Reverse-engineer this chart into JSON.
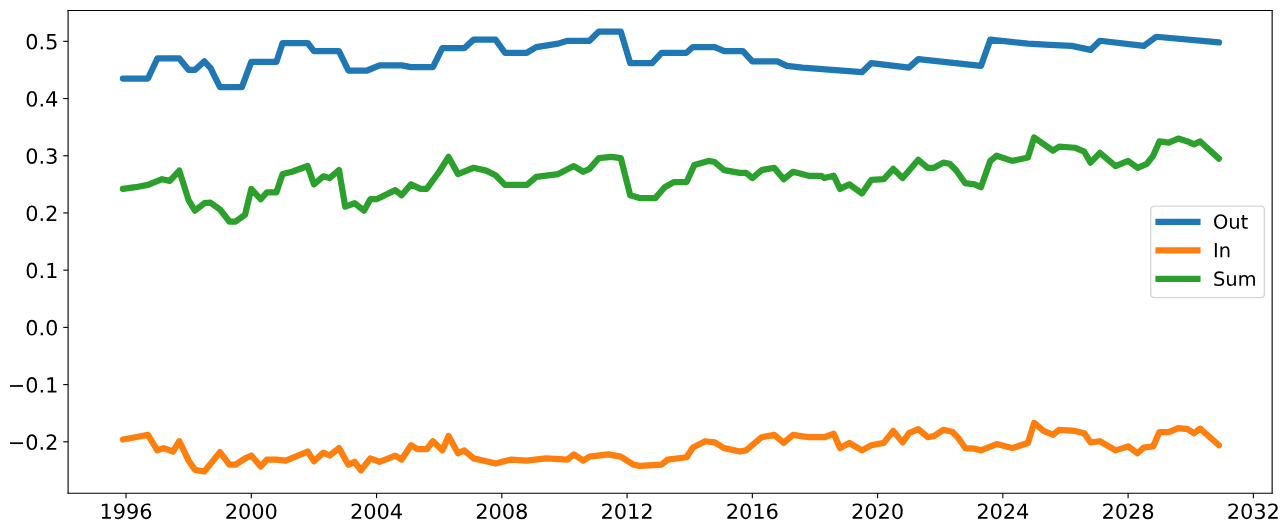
{
  "chart_data": {
    "type": "line",
    "xlim": [
      1994.15,
      2032.6
    ],
    "xticks": [
      1996,
      2000,
      2004,
      2008,
      2012,
      2016,
      2020,
      2024,
      2028,
      2032
    ],
    "ylim": [
      -0.29,
      0.554
    ],
    "yticks": [
      {
        "value": -0.2,
        "label": "−0.2"
      },
      {
        "value": -0.1,
        "label": "−0.1"
      },
      {
        "value": 0.0,
        "label": "0.0"
      },
      {
        "value": 0.1,
        "label": "0.1"
      },
      {
        "value": 0.2,
        "label": "0.2"
      },
      {
        "value": 0.3,
        "label": "0.3"
      },
      {
        "value": 0.4,
        "label": "0.4"
      },
      {
        "value": 0.5,
        "label": "0.5"
      }
    ],
    "grid": false,
    "legend": "right",
    "marker": "none",
    "line_style": "solid",
    "series": [
      {
        "name": "Out",
        "color": "#1f77b4",
        "x": [
          1995.9,
          1996.7,
          1997.0,
          1997.7,
          1998.0,
          1998.2,
          1998.5,
          1998.7,
          1999.0,
          1999.7,
          2000.0,
          2000.8,
          2001.0,
          2001.8,
          2002.0,
          2002.8,
          2003.1,
          2003.7,
          2004.1,
          2004.8,
          2005.1,
          2005.8,
          2006.1,
          2006.8,
          2007.1,
          2007.8,
          2008.1,
          2008.8,
          2009.1,
          2009.8,
          2010.1,
          2010.8,
          2011.1,
          2011.8,
          2012.1,
          2012.8,
          2013.1,
          2013.9,
          2014.1,
          2014.8,
          2015.1,
          2015.7,
          2016.0,
          2016.8,
          2017.1,
          2017.6,
          2019.5,
          2019.8,
          2021.0,
          2021.3,
          2023.3,
          2023.6,
          2024.8,
          2025.5,
          2026.2,
          2026.8,
          2027.1,
          2028.5,
          2028.9,
          2030.9
        ],
        "values": [
          0.435,
          0.435,
          0.47,
          0.47,
          0.45,
          0.45,
          0.465,
          0.453,
          0.42,
          0.42,
          0.464,
          0.464,
          0.497,
          0.497,
          0.483,
          0.483,
          0.449,
          0.449,
          0.458,
          0.458,
          0.455,
          0.455,
          0.488,
          0.488,
          0.503,
          0.503,
          0.48,
          0.48,
          0.49,
          0.496,
          0.501,
          0.501,
          0.517,
          0.517,
          0.462,
          0.462,
          0.48,
          0.48,
          0.49,
          0.49,
          0.483,
          0.483,
          0.465,
          0.465,
          0.457,
          0.454,
          0.446,
          0.462,
          0.454,
          0.469,
          0.457,
          0.503,
          0.496,
          0.494,
          0.492,
          0.485,
          0.501,
          0.492,
          0.508,
          0.498
        ]
      },
      {
        "name": "In",
        "color": "#ff7f0e",
        "x": [
          1995.9,
          1996.3,
          1996.7,
          1997.0,
          1997.2,
          1997.5,
          1997.7,
          1998.0,
          1998.2,
          1998.5,
          1999.0,
          1999.3,
          1999.5,
          1999.8,
          2000.0,
          2000.3,
          2000.5,
          2000.8,
          2001.1,
          2001.8,
          2002.0,
          2002.3,
          2002.5,
          2002.8,
          2003.1,
          2003.3,
          2003.5,
          2003.8,
          2004.1,
          2004.6,
          2004.8,
          2005.1,
          2005.3,
          2005.6,
          2005.8,
          2006.1,
          2006.3,
          2006.6,
          2006.8,
          2007.1,
          2007.5,
          2007.8,
          2008.3,
          2008.8,
          2009.4,
          2010.1,
          2010.3,
          2010.6,
          2010.8,
          2011.4,
          2011.8,
          2012.2,
          2012.4,
          2013.1,
          2013.3,
          2013.9,
          2014.1,
          2014.5,
          2014.8,
          2015.1,
          2015.6,
          2015.8,
          2016.3,
          2016.7,
          2017.0,
          2017.3,
          2017.8,
          2018.3,
          2018.6,
          2018.8,
          2019.1,
          2019.5,
          2019.8,
          2020.2,
          2020.5,
          2020.8,
          2021.0,
          2021.3,
          2021.6,
          2021.8,
          2022.1,
          2022.4,
          2022.6,
          2022.8,
          2023.1,
          2023.3,
          2023.8,
          2024.3,
          2024.8,
          2025.0,
          2025.3,
          2025.6,
          2025.8,
          2026.3,
          2026.6,
          2026.8,
          2027.1,
          2027.6,
          2028.0,
          2028.3,
          2028.5,
          2028.8,
          2029.0,
          2029.3,
          2029.6,
          2029.9,
          2030.1,
          2030.3,
          2030.9
        ],
        "values": [
          -0.196,
          -0.192,
          -0.188,
          -0.215,
          -0.211,
          -0.217,
          -0.199,
          -0.233,
          -0.249,
          -0.252,
          -0.218,
          -0.24,
          -0.24,
          -0.229,
          -0.224,
          -0.243,
          -0.231,
          -0.231,
          -0.233,
          -0.217,
          -0.234,
          -0.219,
          -0.224,
          -0.211,
          -0.24,
          -0.235,
          -0.25,
          -0.229,
          -0.235,
          -0.224,
          -0.231,
          -0.206,
          -0.213,
          -0.213,
          -0.199,
          -0.215,
          -0.19,
          -0.22,
          -0.215,
          -0.229,
          -0.234,
          -0.238,
          -0.231,
          -0.233,
          -0.229,
          -0.231,
          -0.222,
          -0.233,
          -0.226,
          -0.222,
          -0.226,
          -0.24,
          -0.242,
          -0.24,
          -0.231,
          -0.227,
          -0.21,
          -0.199,
          -0.201,
          -0.211,
          -0.217,
          -0.215,
          -0.192,
          -0.188,
          -0.202,
          -0.188,
          -0.192,
          -0.192,
          -0.186,
          -0.211,
          -0.202,
          -0.215,
          -0.206,
          -0.202,
          -0.181,
          -0.201,
          -0.185,
          -0.178,
          -0.192,
          -0.19,
          -0.179,
          -0.183,
          -0.195,
          -0.211,
          -0.212,
          -0.215,
          -0.204,
          -0.211,
          -0.202,
          -0.167,
          -0.181,
          -0.188,
          -0.179,
          -0.181,
          -0.185,
          -0.201,
          -0.199,
          -0.215,
          -0.208,
          -0.22,
          -0.21,
          -0.208,
          -0.183,
          -0.183,
          -0.176,
          -0.178,
          -0.185,
          -0.177,
          -0.206
        ]
      },
      {
        "name": "Sum",
        "color": "#2ca02c",
        "x": [
          1995.9,
          1996.3,
          1996.7,
          1997.15,
          1997.4,
          1997.7,
          1998.0,
          1998.2,
          1998.5,
          1998.7,
          1999.0,
          1999.3,
          1999.5,
          1999.8,
          2000.0,
          2000.3,
          2000.5,
          2000.8,
          2001.0,
          2001.3,
          2001.8,
          2002.0,
          2002.3,
          2002.5,
          2002.8,
          2003.0,
          2003.3,
          2003.6,
          2003.8,
          2004.0,
          2004.6,
          2004.8,
          2005.1,
          2005.4,
          2005.6,
          2006.0,
          2006.3,
          2006.6,
          2007.1,
          2007.5,
          2007.8,
          2008.1,
          2008.8,
          2009.1,
          2009.8,
          2010.3,
          2010.6,
          2010.8,
          2011.1,
          2011.5,
          2011.8,
          2012.1,
          2012.4,
          2012.9,
          2013.2,
          2013.5,
          2013.9,
          2014.15,
          2014.6,
          2014.8,
          2015.1,
          2015.6,
          2015.8,
          2016.0,
          2016.3,
          2016.7,
          2017.0,
          2017.3,
          2017.8,
          2018.2,
          2018.3,
          2018.6,
          2018.8,
          2019.1,
          2019.5,
          2019.8,
          2020.2,
          2020.5,
          2020.8,
          2021.3,
          2021.6,
          2021.8,
          2022.1,
          2022.3,
          2022.5,
          2022.8,
          2023.1,
          2023.3,
          2023.6,
          2023.8,
          2024.3,
          2024.8,
          2025.0,
          2025.6,
          2025.8,
          2026.3,
          2026.6,
          2026.8,
          2027.1,
          2027.6,
          2028.0,
          2028.3,
          2028.6,
          2028.8,
          2029.0,
          2029.3,
          2029.6,
          2029.9,
          2030.1,
          2030.3,
          2030.9
        ],
        "values": [
          0.242,
          0.245,
          0.249,
          0.259,
          0.256,
          0.274,
          0.222,
          0.204,
          0.217,
          0.218,
          0.206,
          0.185,
          0.185,
          0.197,
          0.242,
          0.224,
          0.236,
          0.236,
          0.268,
          0.272,
          0.282,
          0.25,
          0.264,
          0.261,
          0.275,
          0.211,
          0.217,
          0.204,
          0.224,
          0.224,
          0.24,
          0.231,
          0.25,
          0.242,
          0.242,
          0.272,
          0.298,
          0.268,
          0.279,
          0.274,
          0.266,
          0.249,
          0.249,
          0.263,
          0.268,
          0.282,
          0.272,
          0.277,
          0.296,
          0.298,
          0.296,
          0.231,
          0.226,
          0.226,
          0.245,
          0.254,
          0.254,
          0.284,
          0.291,
          0.289,
          0.275,
          0.27,
          0.27,
          0.261,
          0.275,
          0.279,
          0.259,
          0.272,
          0.265,
          0.265,
          0.261,
          0.265,
          0.242,
          0.25,
          0.234,
          0.258,
          0.259,
          0.277,
          0.261,
          0.293,
          0.279,
          0.279,
          0.288,
          0.286,
          0.275,
          0.252,
          0.25,
          0.245,
          0.291,
          0.3,
          0.291,
          0.297,
          0.332,
          0.309,
          0.316,
          0.314,
          0.307,
          0.288,
          0.305,
          0.282,
          0.291,
          0.279,
          0.286,
          0.3,
          0.325,
          0.323,
          0.33,
          0.325,
          0.32,
          0.325,
          0.295
        ]
      }
    ]
  }
}
